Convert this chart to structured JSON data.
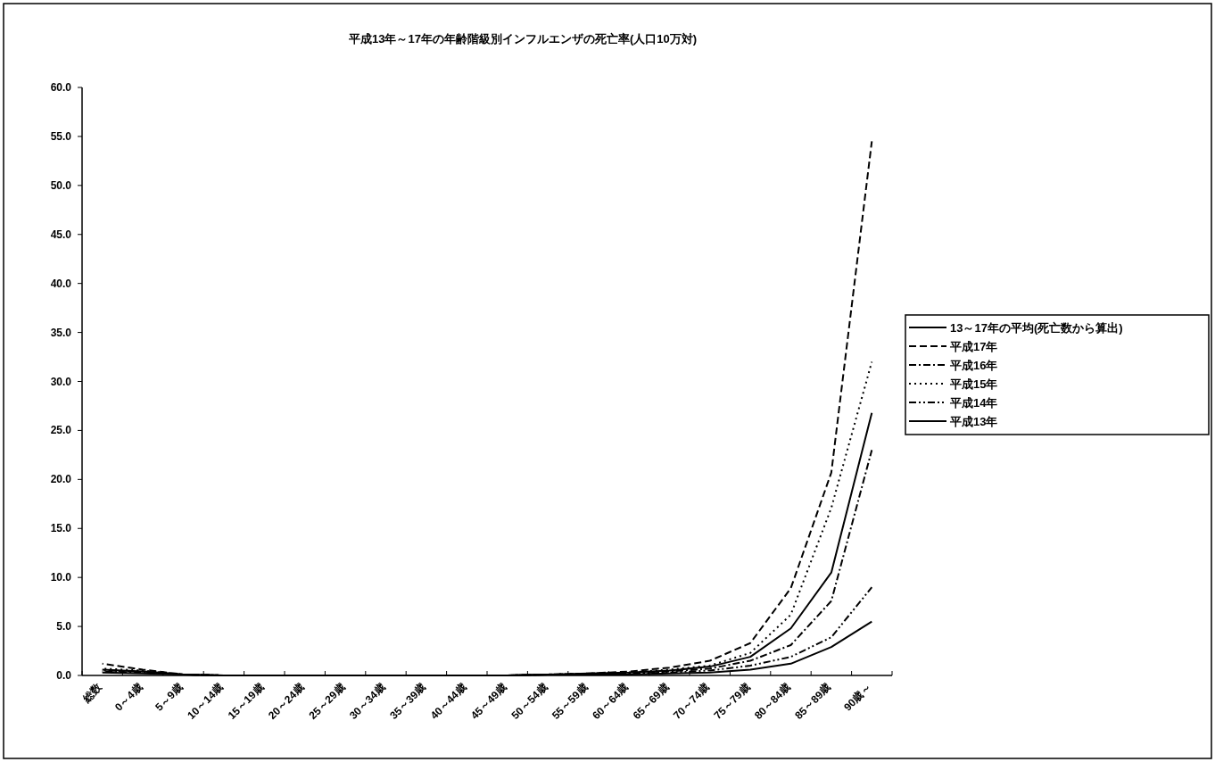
{
  "chart_data": {
    "type": "line",
    "title": "平成13年～17年の年齢階級別インフルエンザの死亡率(人口10万対)",
    "categories": [
      "総数",
      "0～4歳",
      "5～9歳",
      "10～14歳",
      "15～19歳",
      "20～24歳",
      "25～29歳",
      "30～34歳",
      "35～39歳",
      "40～44歳",
      "45～49歳",
      "50～54歳",
      "55～59歳",
      "60～64歳",
      "65～69歳",
      "70～74歳",
      "75～79歳",
      "80～84歳",
      "85～89歳",
      "90歳～"
    ],
    "series": [
      {
        "name": "13～17年の平均(死亡数から算出)",
        "color": "#000000",
        "line_style": "solid",
        "values": [
          0.6,
          0.4,
          0.1,
          0.0,
          0.0,
          0.0,
          0.0,
          0.0,
          0.0,
          0.0,
          0.0,
          0.1,
          0.2,
          0.3,
          0.5,
          0.9,
          1.9,
          4.8,
          10.5,
          26.8
        ]
      },
      {
        "name": "平成17年",
        "color": "#000000",
        "line_style": "dashed",
        "values": [
          1.2,
          0.6,
          0.1,
          0.0,
          0.0,
          0.0,
          0.0,
          0.0,
          0.0,
          0.0,
          0.0,
          0.1,
          0.2,
          0.4,
          0.8,
          1.5,
          3.3,
          8.9,
          20.7,
          54.5
        ]
      },
      {
        "name": "平成16年",
        "color": "#000000",
        "line_style": "dashdot",
        "values": [
          0.4,
          0.3,
          0.1,
          0.0,
          0.0,
          0.0,
          0.0,
          0.0,
          0.0,
          0.0,
          0.0,
          0.1,
          0.1,
          0.2,
          0.4,
          0.7,
          1.5,
          3.1,
          7.6,
          23.0
        ]
      },
      {
        "name": "平成15年",
        "color": "#000000",
        "line_style": "dotted",
        "values": [
          0.7,
          0.5,
          0.1,
          0.0,
          0.0,
          0.0,
          0.0,
          0.0,
          0.0,
          0.0,
          0.0,
          0.1,
          0.2,
          0.3,
          0.6,
          1.0,
          2.3,
          6.2,
          17.1,
          32.0
        ]
      },
      {
        "name": "平成14年",
        "color": "#000000",
        "line_style": "dashdotdot",
        "values": [
          0.5,
          0.4,
          0.1,
          0.0,
          0.0,
          0.0,
          0.0,
          0.0,
          0.0,
          0.0,
          0.0,
          0.1,
          0.1,
          0.2,
          0.3,
          0.5,
          1.0,
          1.9,
          3.9,
          9.0
        ]
      },
      {
        "name": "平成13年",
        "color": "#000000",
        "line_style": "solid",
        "values": [
          0.3,
          0.2,
          0.1,
          0.0,
          0.0,
          0.0,
          0.0,
          0.0,
          0.0,
          0.0,
          0.0,
          0.1,
          0.1,
          0.1,
          0.2,
          0.3,
          0.6,
          1.2,
          2.9,
          5.5
        ]
      }
    ],
    "ylim": [
      0,
      60
    ],
    "yticks": [
      {
        "value": 0,
        "label": "0.0"
      },
      {
        "value": 5,
        "label": "5.0"
      },
      {
        "value": 10,
        "label": "10.0"
      },
      {
        "value": 15,
        "label": "15.0"
      },
      {
        "value": 20,
        "label": "20.0"
      },
      {
        "value": 25,
        "label": "25.0"
      },
      {
        "value": 30,
        "label": "30.0"
      },
      {
        "value": 35,
        "label": "35.0"
      },
      {
        "value": 40,
        "label": "40.0"
      },
      {
        "value": 45,
        "label": "45.0"
      },
      {
        "value": 50,
        "label": "50.0"
      },
      {
        "value": 55,
        "label": "55.0"
      },
      {
        "value": 60,
        "label": "60.0"
      }
    ],
    "grid": false,
    "legend": "right"
  }
}
